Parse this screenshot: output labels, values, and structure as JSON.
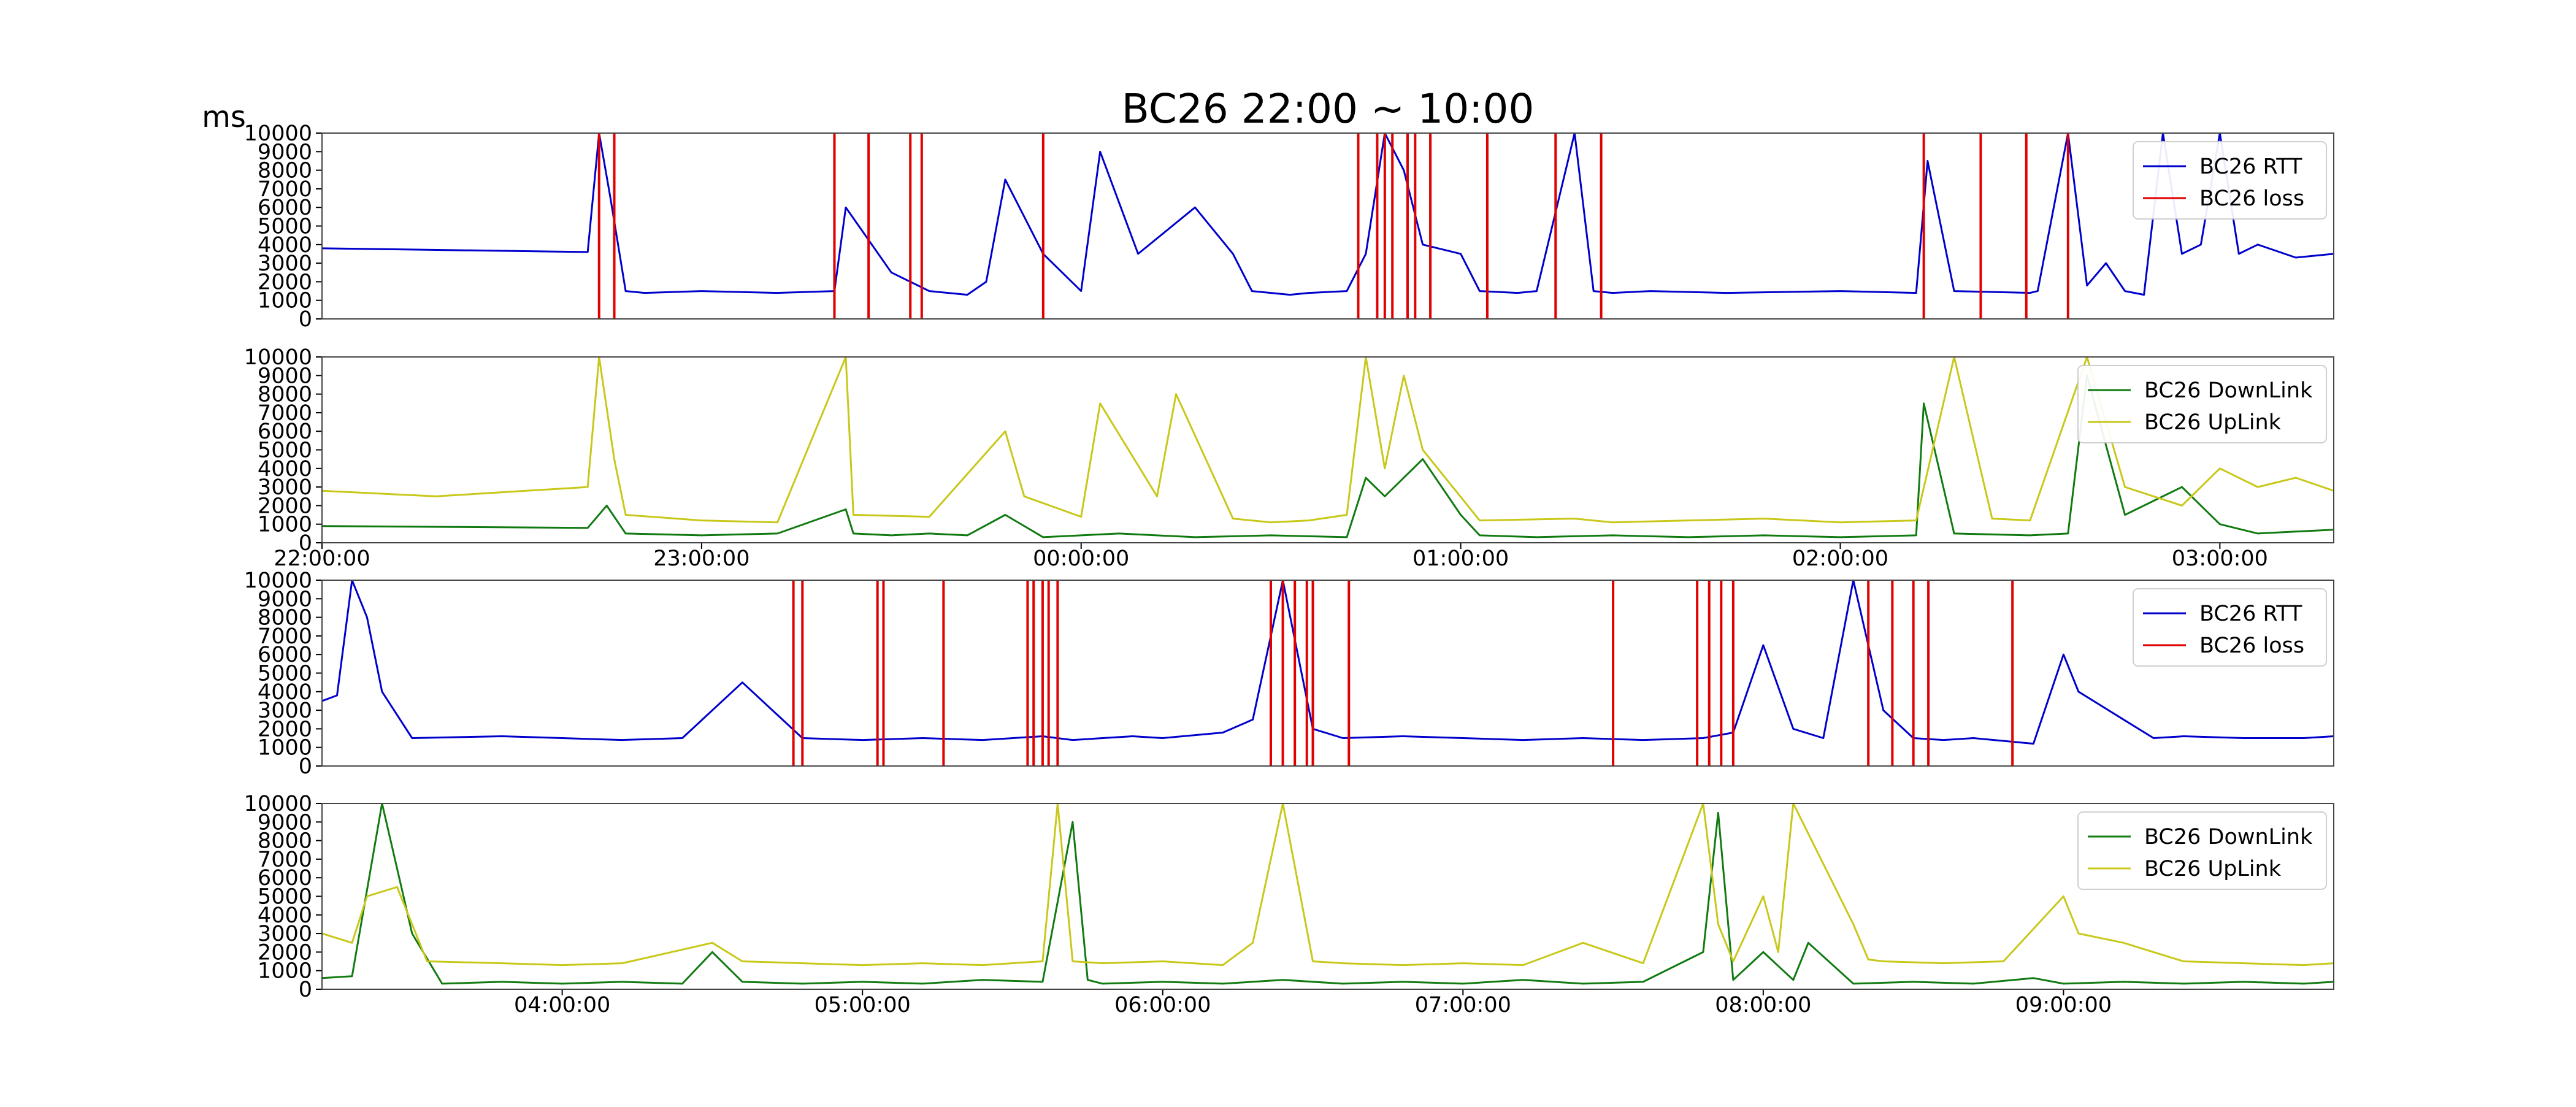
{
  "title": "BC26 22:00 ~ 10:00",
  "ylabel": "ms",
  "colors": {
    "rtt": "#0000cc",
    "loss": "#e00000",
    "downlink": "#117a11",
    "uplink": "#c8c81a"
  },
  "chart_data": [
    {
      "type": "line",
      "panel": "top-rtt",
      "ylim": [
        0,
        10000
      ],
      "yticks": [
        0,
        1000,
        2000,
        3000,
        4000,
        5000,
        6000,
        7000,
        8000,
        9000,
        10000
      ],
      "xlim": [
        0,
        5.3
      ],
      "legend": {
        "placement": "top-right",
        "entries": [
          "BC26 RTT",
          "BC26 loss"
        ]
      },
      "series": [
        {
          "name": "BC26 RTT",
          "x": [
            0.0,
            0.7,
            0.73,
            0.76,
            0.8,
            0.85,
            1.0,
            1.2,
            1.35,
            1.38,
            1.5,
            1.6,
            1.7,
            1.75,
            1.8,
            1.9,
            2.0,
            2.05,
            2.15,
            2.3,
            2.4,
            2.45,
            2.55,
            2.6,
            2.7,
            2.75,
            2.8,
            2.85,
            2.9,
            3.0,
            3.05,
            3.15,
            3.2,
            3.3,
            3.35,
            3.4,
            3.5,
            3.7,
            4.0,
            4.2,
            4.23,
            4.3,
            4.5,
            4.52,
            4.6,
            4.65,
            4.7,
            4.75,
            4.8,
            4.85,
            4.9,
            4.95,
            5.0,
            5.05,
            5.1,
            5.2,
            5.3
          ],
          "y": [
            3800,
            3600,
            10000,
            6500,
            1500,
            1400,
            1500,
            1400,
            1500,
            6000,
            2500,
            1500,
            1300,
            2000,
            7500,
            3500,
            1500,
            9000,
            3500,
            6000,
            3500,
            1500,
            1300,
            1400,
            1500,
            3500,
            10000,
            8000,
            4000,
            3500,
            1500,
            1400,
            1500,
            10000,
            1500,
            1400,
            1500,
            1400,
            1500,
            1400,
            8500,
            1500,
            1400,
            1500,
            10000,
            1800,
            3000,
            1500,
            1300,
            10000,
            3500,
            4000,
            10000,
            3500,
            4000,
            3300,
            3500
          ]
        },
        {
          "name": "BC26 loss",
          "events_x": [
            0.73,
            0.77,
            1.35,
            1.44,
            1.55,
            1.58,
            1.9,
            2.73,
            2.78,
            2.8,
            2.82,
            2.86,
            2.88,
            2.92,
            3.07,
            3.25,
            3.37,
            4.22,
            4.37,
            4.49,
            4.6
          ]
        }
      ],
      "xticks": [
        "22:00:00",
        "23:00:00",
        "00:00:00",
        "01:00:00",
        "02:00:00",
        "03:00:00"
      ]
    },
    {
      "type": "line",
      "panel": "top-throughput",
      "ylim": [
        0,
        10000
      ],
      "yticks": [
        0,
        1000,
        2000,
        3000,
        4000,
        5000,
        6000,
        7000,
        8000,
        9000,
        10000
      ],
      "xlim": [
        0,
        5.3
      ],
      "legend": {
        "placement": "top-right",
        "entries": [
          "BC26 DownLink",
          "BC26 UpLink"
        ]
      },
      "series": [
        {
          "name": "BC26 DownLink",
          "x": [
            0.0,
            0.7,
            0.75,
            0.8,
            1.0,
            1.2,
            1.38,
            1.4,
            1.5,
            1.6,
            1.7,
            1.8,
            1.9,
            2.0,
            2.1,
            2.3,
            2.5,
            2.7,
            2.75,
            2.8,
            2.9,
            3.0,
            3.05,
            3.2,
            3.4,
            3.6,
            3.8,
            4.0,
            4.2,
            4.22,
            4.3,
            4.5,
            4.6,
            4.65,
            4.75,
            4.9,
            5.0,
            5.1,
            5.2,
            5.3
          ],
          "y": [
            900,
            800,
            2000,
            500,
            400,
            500,
            1800,
            500,
            400,
            500,
            400,
            1500,
            300,
            400,
            500,
            300,
            400,
            300,
            3500,
            2500,
            4500,
            1500,
            400,
            300,
            400,
            300,
            400,
            300,
            400,
            7500,
            500,
            400,
            500,
            9000,
            1500,
            3000,
            1000,
            500,
            600,
            700
          ]
        },
        {
          "name": "BC26 UpLink",
          "x": [
            0.0,
            0.3,
            0.7,
            0.73,
            0.77,
            0.8,
            1.0,
            1.2,
            1.38,
            1.4,
            1.6,
            1.8,
            1.85,
            2.0,
            2.05,
            2.2,
            2.25,
            2.4,
            2.5,
            2.6,
            2.7,
            2.75,
            2.8,
            2.85,
            2.9,
            3.05,
            3.3,
            3.4,
            3.6,
            3.8,
            4.0,
            4.2,
            4.3,
            4.4,
            4.5,
            4.65,
            4.75,
            4.9,
            5.0,
            5.1,
            5.2,
            5.3
          ],
          "y": [
            2800,
            2500,
            3000,
            10000,
            4500,
            1500,
            1200,
            1100,
            10000,
            1500,
            1400,
            6000,
            2500,
            1400,
            7500,
            2500,
            8000,
            1300,
            1100,
            1200,
            1500,
            10000,
            4000,
            9000,
            5000,
            1200,
            1300,
            1100,
            1200,
            1300,
            1100,
            1200,
            10000,
            1300,
            1200,
            10000,
            3000,
            2000,
            4000,
            3000,
            3500,
            2800
          ]
        }
      ],
      "xticks": [
        "22:00:00",
        "23:00:00",
        "00:00:00",
        "01:00:00",
        "02:00:00",
        "03:00:00"
      ]
    },
    {
      "type": "line",
      "panel": "bottom-rtt",
      "ylim": [
        0,
        10000
      ],
      "yticks": [
        0,
        1000,
        2000,
        3000,
        4000,
        5000,
        6000,
        7000,
        8000,
        9000,
        10000
      ],
      "xlim": [
        3.2,
        9.9
      ],
      "legend": {
        "placement": "top-right",
        "entries": [
          "BC26 RTT",
          "BC26 loss"
        ]
      },
      "series": [
        {
          "name": "BC26 RTT",
          "x": [
            3.2,
            3.25,
            3.3,
            3.35,
            3.4,
            3.5,
            3.8,
            4.0,
            4.2,
            4.4,
            4.6,
            4.8,
            5.0,
            5.2,
            5.4,
            5.6,
            5.7,
            5.8,
            5.9,
            6.0,
            6.2,
            6.3,
            6.4,
            6.45,
            6.5,
            6.6,
            6.8,
            7.0,
            7.2,
            7.4,
            7.6,
            7.8,
            7.9,
            8.0,
            8.1,
            8.2,
            8.3,
            8.4,
            8.5,
            8.6,
            8.7,
            8.9,
            9.0,
            9.05,
            9.2,
            9.3,
            9.4,
            9.6,
            9.8,
            9.9
          ],
          "y": [
            3500,
            3800,
            10000,
            8000,
            4000,
            1500,
            1600,
            1500,
            1400,
            1500,
            4500,
            1500,
            1400,
            1500,
            1400,
            1600,
            1400,
            1500,
            1600,
            1500,
            1800,
            2500,
            10000,
            6000,
            2000,
            1500,
            1600,
            1500,
            1400,
            1500,
            1400,
            1500,
            1800,
            6500,
            2000,
            1500,
            10000,
            3000,
            1500,
            1400,
            1500,
            1200,
            6000,
            4000,
            2500,
            1500,
            1600,
            1500,
            1500,
            1600
          ]
        },
        {
          "name": "BC26 loss",
          "events_x": [
            4.77,
            4.8,
            5.05,
            5.07,
            5.27,
            5.55,
            5.57,
            5.6,
            5.62,
            5.65,
            6.36,
            6.4,
            6.44,
            6.48,
            6.5,
            6.62,
            7.5,
            7.78,
            7.82,
            7.86,
            7.9,
            8.35,
            8.43,
            8.5,
            8.55,
            8.83
          ]
        }
      ],
      "xticks": [
        "04:00:00",
        "05:00:00",
        "06:00:00",
        "07:00:00",
        "08:00:00",
        "09:00:00"
      ]
    },
    {
      "type": "line",
      "panel": "bottom-throughput",
      "ylim": [
        0,
        10000
      ],
      "yticks": [
        0,
        1000,
        2000,
        3000,
        4000,
        5000,
        6000,
        7000,
        8000,
        9000,
        10000
      ],
      "xlim": [
        3.2,
        9.9
      ],
      "legend": {
        "placement": "top-right",
        "entries": [
          "BC26 DownLink",
          "BC26 UpLink"
        ]
      },
      "series": [
        {
          "name": "BC26 DownLink",
          "x": [
            3.2,
            3.3,
            3.4,
            3.5,
            3.6,
            3.8,
            4.0,
            4.2,
            4.4,
            4.5,
            4.6,
            4.8,
            5.0,
            5.2,
            5.4,
            5.6,
            5.7,
            5.75,
            5.8,
            6.0,
            6.2,
            6.4,
            6.6,
            6.8,
            7.0,
            7.2,
            7.4,
            7.6,
            7.8,
            7.85,
            7.9,
            8.0,
            8.1,
            8.15,
            8.3,
            8.5,
            8.7,
            8.9,
            9.0,
            9.2,
            9.4,
            9.6,
            9.8,
            9.9
          ],
          "y": [
            600,
            700,
            10000,
            3000,
            300,
            400,
            300,
            400,
            300,
            2000,
            400,
            300,
            400,
            300,
            500,
            400,
            9000,
            500,
            300,
            400,
            300,
            500,
            300,
            400,
            300,
            500,
            300,
            400,
            2000,
            9500,
            500,
            2000,
            500,
            2500,
            300,
            400,
            300,
            600,
            300,
            400,
            300,
            400,
            300,
            400
          ]
        },
        {
          "name": "BC26 UpLink",
          "x": [
            3.2,
            3.3,
            3.35,
            3.45,
            3.55,
            3.8,
            4.0,
            4.2,
            4.5,
            4.6,
            4.8,
            5.0,
            5.2,
            5.4,
            5.6,
            5.65,
            5.7,
            5.8,
            6.0,
            6.2,
            6.3,
            6.4,
            6.5,
            6.6,
            6.8,
            7.0,
            7.2,
            7.4,
            7.6,
            7.8,
            7.85,
            7.9,
            8.0,
            8.05,
            8.1,
            8.3,
            8.35,
            8.4,
            8.6,
            8.8,
            9.0,
            9.05,
            9.2,
            9.4,
            9.6,
            9.8,
            9.9
          ],
          "y": [
            3000,
            2500,
            5000,
            5500,
            1500,
            1400,
            1300,
            1400,
            2500,
            1500,
            1400,
            1300,
            1400,
            1300,
            1500,
            10000,
            1500,
            1400,
            1500,
            1300,
            2500,
            10000,
            1500,
            1400,
            1300,
            1400,
            1300,
            2500,
            1400,
            10000,
            3500,
            1500,
            5000,
            2000,
            10000,
            3500,
            1600,
            1500,
            1400,
            1500,
            5000,
            3000,
            2500,
            1500,
            1400,
            1300,
            1400
          ]
        }
      ],
      "xticks": [
        "04:00:00",
        "05:00:00",
        "06:00:00",
        "07:00:00",
        "08:00:00",
        "09:00:00"
      ]
    }
  ]
}
